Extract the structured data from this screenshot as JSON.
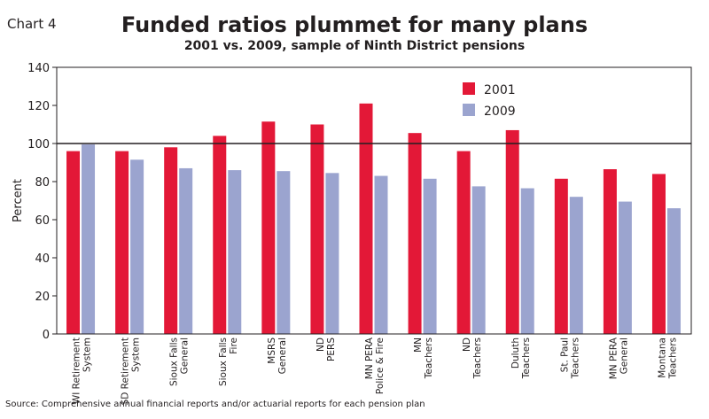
{
  "chart_label": "Chart 4",
  "chart_data": {
    "type": "bar",
    "title": "Funded ratios plummet for many plans",
    "subtitle": "2001 vs. 2009, sample of Ninth District pensions",
    "xlabel": "",
    "ylabel": "Percent",
    "ylim": [
      0,
      140
    ],
    "yticks": [
      "0",
      "20",
      "40",
      "60",
      "80",
      "100",
      "120",
      "140"
    ],
    "reference_line": 100,
    "legend_position": "top-right",
    "grid": false,
    "categories": [
      [
        "WI Retirement",
        "System"
      ],
      [
        "SD Retirement",
        "System"
      ],
      [
        "Sioux Falls",
        "General"
      ],
      [
        "Sioux Falls",
        "Fire"
      ],
      [
        "MSRS",
        "General"
      ],
      [
        "ND",
        "PERS"
      ],
      [
        "MN PERA",
        "Police & Fire"
      ],
      [
        "MN",
        "Teachers"
      ],
      [
        "ND",
        "Teachers"
      ],
      [
        "Duluth",
        "Teachers"
      ],
      [
        "St. Paul",
        "Teachers"
      ],
      [
        "MN PERA",
        "General"
      ],
      [
        "Montana",
        "Teachers"
      ]
    ],
    "series": [
      {
        "name": "2001",
        "color": "#e31837",
        "values": [
          96,
          96,
          98,
          104,
          111.5,
          110,
          121,
          105.5,
          96,
          107,
          81.5,
          86.5,
          84
        ]
      },
      {
        "name": "2009",
        "color": "#9ba4cf",
        "values": [
          99.5,
          91.5,
          87,
          86,
          85.5,
          84.5,
          83,
          81.5,
          77.5,
          76.5,
          72,
          69.5,
          66
        ]
      }
    ]
  },
  "source_note": "Source: Comprehensive annual financial reports and/or actuarial reports for each pension plan"
}
